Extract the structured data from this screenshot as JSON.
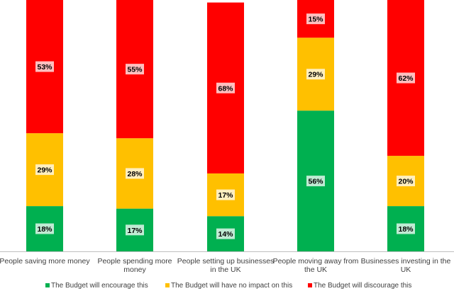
{
  "chart_data": {
    "type": "bar",
    "stacked": true,
    "percent_stacked": true,
    "title": "",
    "xlabel": "",
    "ylabel": "",
    "ylim": [
      0,
      100
    ],
    "grid": false,
    "legend_position": "bottom",
    "categories": [
      [
        "People saving more money"
      ],
      [
        "People spending more",
        "money"
      ],
      [
        "People setting up businesses",
        "in the UK"
      ],
      [
        "People moving away from",
        "the UK"
      ],
      [
        "Businesses investing in the",
        "UK"
      ]
    ],
    "series": [
      {
        "name": "The Budget will encourage this",
        "color": "#00B050",
        "values": [
          18,
          17,
          14,
          56,
          18
        ]
      },
      {
        "name": "The Budget will have no impact on this",
        "color": "#FFC000",
        "values": [
          29,
          28,
          17,
          29,
          20
        ]
      },
      {
        "name": "The Budget will discourage this",
        "color": "#FF0000",
        "values": [
          53,
          55,
          68,
          15,
          62
        ]
      }
    ],
    "data_label_suffix": "%"
  }
}
